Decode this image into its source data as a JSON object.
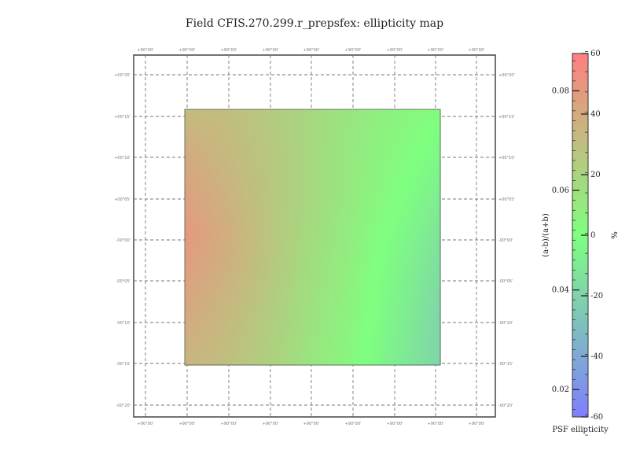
{
  "chart_data": {
    "type": "heatmap",
    "title": "Field CFIS.270.299.r_prepsfex: ellipticity map",
    "grid": true,
    "x_ticks_top": [
      "+90°00'",
      "+90°00'",
      "+90°00'",
      "+90°00'",
      "+90°00'",
      "+90°00'",
      "+90°00'",
      "+90°00'",
      "+90°00'"
    ],
    "x_ticks_bottom": [
      "+90°00'",
      "+90°00'",
      "+90°00'",
      "+90°00'",
      "+90°00'",
      "+90°00'",
      "+90°00'",
      "+90°00'",
      "+90°00'"
    ],
    "y_ticks_left": [
      "+00°20'",
      "+00°15'",
      "+00°10'",
      "+00°05'",
      "-00°00'",
      "-00°05'",
      "-00°10'",
      "-00°15'",
      "-00°20'"
    ],
    "y_ticks_right": [
      "+00°20'",
      "+00°15'",
      "+00°10'",
      "+00°05'",
      "-00°00'",
      "-00°05'",
      "-00°10'",
      "-00°15'",
      "-00°20'"
    ],
    "field_extent_deg": {
      "ra_min": -0.25,
      "ra_max": 0.35,
      "dec_min": -0.25,
      "dec_max": 0.25
    },
    "field_values": {
      "description_rows": "rows from top (+00°15') to bottom (-00°15'), columns from left to right",
      "rows": [
        [
          0.07,
          0.07,
          0.068,
          0.065,
          0.062,
          0.059,
          0.056,
          0.054,
          0.052
        ],
        [
          0.075,
          0.072,
          0.069,
          0.066,
          0.062,
          0.058,
          0.055,
          0.052,
          0.049
        ],
        [
          0.078,
          0.074,
          0.07,
          0.066,
          0.062,
          0.058,
          0.054,
          0.05,
          0.046
        ],
        [
          0.08,
          0.076,
          0.071,
          0.066,
          0.061,
          0.057,
          0.052,
          0.048,
          0.043
        ],
        [
          0.078,
          0.074,
          0.07,
          0.065,
          0.06,
          0.056,
          0.051,
          0.046,
          0.041
        ],
        [
          0.075,
          0.072,
          0.068,
          0.064,
          0.059,
          0.055,
          0.05,
          0.045,
          0.039
        ],
        [
          0.072,
          0.07,
          0.067,
          0.063,
          0.058,
          0.054,
          0.049,
          0.044,
          0.039
        ]
      ]
    },
    "colorbar": {
      "left_ticks": [
        "0.08",
        "0.06",
        "0.04",
        "0.02"
      ],
      "left_values": [
        0.08,
        0.06,
        0.04,
        0.02
      ],
      "right_ticks": [
        "60",
        "40",
        "20",
        "0",
        "-20",
        "-40",
        "-60"
      ],
      "right_values": [
        60,
        40,
        20,
        0,
        -20,
        -40,
        -60
      ],
      "left_axis_label": "(a-b)/(a+b)",
      "right_axis_label": "%",
      "title": "PSF ellipticity",
      "range_left": [
        0.0145,
        0.0875
      ],
      "colors": {
        "high": "#ff7f7f",
        "mid": "#7fff7f",
        "low": "#7f7fff"
      }
    }
  }
}
